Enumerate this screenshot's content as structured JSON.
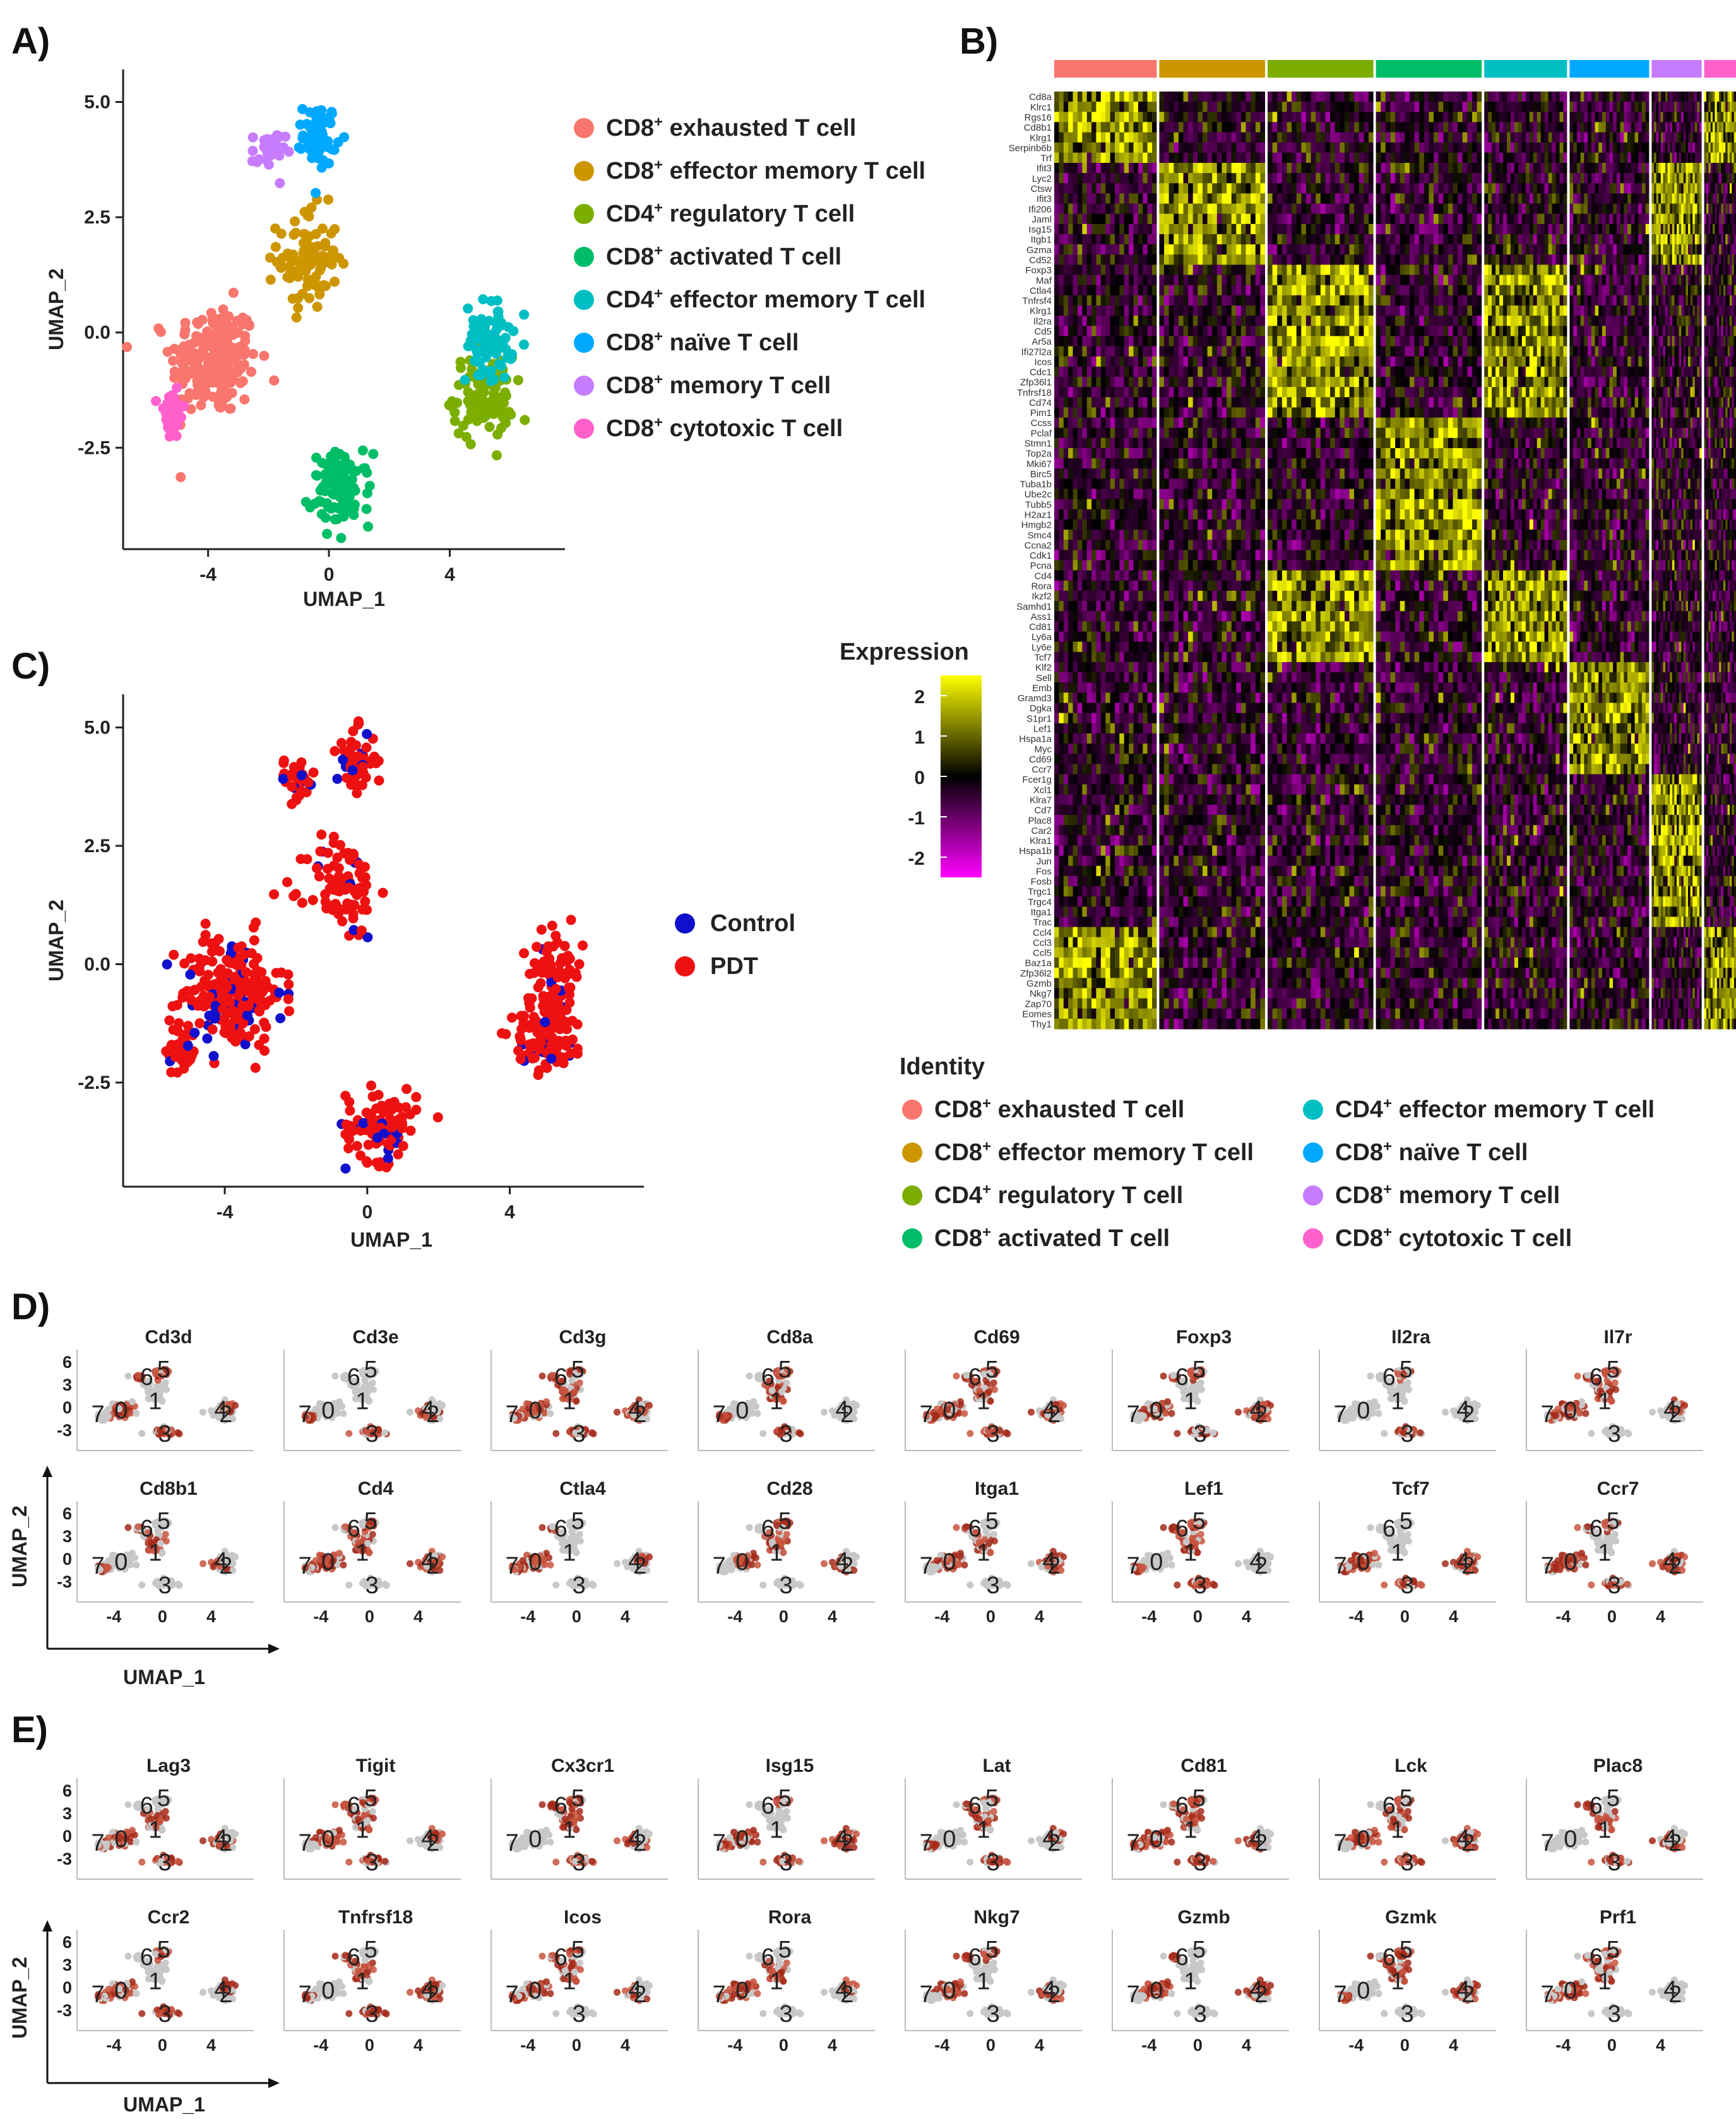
{
  "panels": {
    "A": {
      "letter": "A)",
      "xlabel": "UMAP_1",
      "ylabel": "UMAP_2",
      "xticks": [
        "-4",
        "0",
        "4"
      ],
      "yticks": [
        "5.0",
        "2.5",
        "0.0",
        "-2.5"
      ],
      "legend": [
        {
          "pre": "CD8",
          "post": " exhausted T cell",
          "color": "#F8766D"
        },
        {
          "pre": "CD8",
          "post": " effector memory T cell",
          "color": "#CD9600"
        },
        {
          "pre": "CD4",
          "post": " regulatory T cell",
          "color": "#7CAE00"
        },
        {
          "pre": "CD8",
          "post": " activated T cell",
          "color": "#00BE67"
        },
        {
          "pre": "CD4",
          "post": " effector memory T cell",
          "color": "#00BFC4"
        },
        {
          "pre": "CD8",
          "post": " naïve T cell",
          "color": "#00A9FF"
        },
        {
          "pre": "CD8",
          "post": " memory T cell",
          "color": "#C77CFF"
        },
        {
          "pre": "CD8",
          "post": " cytotoxic T cell",
          "color": "#FF61CC"
        }
      ],
      "superscript": "+"
    },
    "B": {
      "letter": "B)",
      "expression_title": "Expression",
      "expression_ticks": [
        "2",
        "1",
        "0",
        "-1",
        "-2"
      ],
      "identity_title": "Identity",
      "genes": [
        "Cd8a",
        "Klrc1",
        "Rgs16",
        "Cd8b1",
        "Klrg1",
        "Serpinb6b",
        "Trf",
        "Ifit3",
        "Lyc2",
        "Ctsw",
        "Ifit3",
        "Ifi206",
        "Jaml",
        "Isg15",
        "Itgb1",
        "Gzma",
        "Cd52",
        "Foxp3",
        "Maf",
        "Ctla4",
        "Tnfrsf4",
        "Klrg1",
        "Il2ra",
        "Cd5",
        "Ar5a",
        "Ifi27l2a",
        "Icos",
        "Cdc1",
        "Zfp36l1",
        "Tnfrsf18",
        "Cd74",
        "Pim1",
        "Ccss",
        "Pclaf",
        "Stmn1",
        "Top2a",
        "Mki67",
        "Birc5",
        "Tuba1b",
        "Ube2c",
        "Tubb5",
        "H2az1",
        "Hmgb2",
        "Smc4",
        "Ccna2",
        "Cdk1",
        "Pcna",
        "Cd4",
        "Rora",
        "Ikzf2",
        "Samhd1",
        "Ass1",
        "Cd81",
        "Ly6a",
        "Ly6e",
        "Tcf7",
        "Klf2",
        "Sell",
        "Emb",
        "Gramd3",
        "Dgka",
        "S1pr1",
        "Lef1",
        "Hspa1a",
        "Myc",
        "Cd69",
        "Ccr7",
        "Fcer1g",
        "Xcl1",
        "Klra7",
        "Cd7",
        "Plac8",
        "Car2",
        "Klra1",
        "Hspa1b",
        "Jun",
        "Fos",
        "Fosb",
        "Trgc1",
        "Trgc4",
        "Itga1",
        "Trac",
        "Ccl4",
        "Ccl3",
        "Ccl5",
        "Baz1a",
        "Zfp36l2",
        "Gzmb",
        "Nkg7",
        "Zap70",
        "Eomes",
        "Thy1"
      ]
    },
    "C": {
      "letter": "C)",
      "xlabel": "UMAP_1",
      "ylabel": "UMAP_2",
      "xticks": [
        "-4",
        "0",
        "4"
      ],
      "yticks": [
        "5.0",
        "2.5",
        "0.0",
        "-2.5"
      ],
      "legend": [
        {
          "label": "Control",
          "color": "#1010CC"
        },
        {
          "label": "PDT",
          "color": "#EE1111"
        }
      ]
    },
    "D": {
      "letter": "D)",
      "genes_row1": [
        "Cd3d",
        "Cd3e",
        "Cd3g",
        "Cd8a",
        "Cd69",
        "Foxp3",
        "Il2ra",
        "Il7r"
      ],
      "genes_row2": [
        "Cd8b1",
        "Cd4",
        "Ctla4",
        "Cd28",
        "Itga1",
        "Lef1",
        "Tcf7",
        "Ccr7"
      ],
      "xlabel": "UMAP_1",
      "ylabel": "UMAP_2"
    },
    "E": {
      "letter": "E)",
      "genes_row1": [
        "Lag3",
        "Tigit",
        "Cx3cr1",
        "Isg15",
        "Lat",
        "Cd81",
        "Lck",
        "Plac8"
      ],
      "genes_row2": [
        "Ccr2",
        "Tnfrsf18",
        "Icos",
        "Rora",
        "Nkg7",
        "Gzmb",
        "Gzmk",
        "Prf1"
      ],
      "xlabel": "UMAP_1",
      "ylabel": "UMAP_2"
    }
  },
  "feature_plot": {
    "yticks": [
      "6",
      "3",
      "0",
      "-3"
    ],
    "xticks": [
      "-4",
      "0",
      "4"
    ],
    "cluster_labels": [
      "0",
      "1",
      "2",
      "3",
      "4",
      "5",
      "6",
      "7"
    ]
  },
  "chart_data": [
    {
      "type": "scatter",
      "panel": "A",
      "xlabel": "UMAP_1",
      "ylabel": "UMAP_2",
      "xlim": [
        -6.5,
        7.5
      ],
      "ylim": [
        -4.7,
        5.5
      ],
      "clusters": [
        {
          "name": "CD8+ exhausted T cell",
          "center": [
            -3.8,
            -0.6
          ],
          "spread": [
            1.3,
            1.1
          ]
        },
        {
          "name": "CD8+ effector memory T cell",
          "center": [
            -0.7,
            1.6
          ],
          "spread": [
            0.9,
            1.0
          ]
        },
        {
          "name": "CD4+ regulatory T cell",
          "center": [
            5.1,
            -1.4
          ],
          "spread": [
            0.9,
            0.8
          ]
        },
        {
          "name": "CD8+ activated T cell",
          "center": [
            0.4,
            -3.4
          ],
          "spread": [
            0.9,
            0.7
          ]
        },
        {
          "name": "CD4+ effector memory T cell",
          "center": [
            5.3,
            -0.2
          ],
          "spread": [
            0.7,
            0.8
          ]
        },
        {
          "name": "CD8+ naïve T cell",
          "center": [
            -0.3,
            4.3
          ],
          "spread": [
            0.5,
            0.6
          ]
        },
        {
          "name": "CD8+ memory T cell",
          "center": [
            -2.0,
            3.9
          ],
          "spread": [
            0.5,
            0.4
          ]
        },
        {
          "name": "CD8+ cytotoxic T cell",
          "center": [
            -5.2,
            -1.8
          ],
          "spread": [
            0.4,
            0.5
          ]
        }
      ]
    },
    {
      "type": "scatter",
      "panel": "C",
      "xlabel": "UMAP_1",
      "ylabel": "UMAP_2",
      "xlim": [
        -6.5,
        7.5
      ],
      "ylim": [
        -4.7,
        5.5
      ],
      "series": [
        {
          "name": "Control"
        },
        {
          "name": "PDT"
        }
      ]
    },
    {
      "type": "heatmap",
      "panel": "B",
      "legend_range": [
        -2.5,
        2.5
      ],
      "column_groups": [
        "CD8+ exhausted T cell",
        "CD8+ effector memory T cell",
        "CD4+ regulatory T cell",
        "CD8+ activated T cell",
        "CD4+ effector memory T cell",
        "CD8+ naïve T cell",
        "CD8+ memory T cell",
        "CD8+ cytotoxic T cell"
      ],
      "column_group_fractions": [
        0.16,
        0.165,
        0.165,
        0.165,
        0.13,
        0.125,
        0.08,
        0.075
      ]
    }
  ]
}
